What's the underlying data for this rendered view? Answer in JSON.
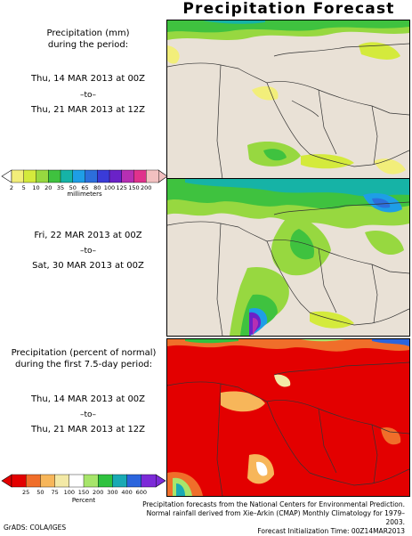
{
  "title": "Precipitation Forecast",
  "panel1": {
    "label_line1": "Precipitation (mm)",
    "label_line2": "during the period:",
    "start": "Thu, 14 MAR 2013 at 00Z",
    "to": "–to–",
    "end": "Thu, 21 MAR 2013 at 12Z"
  },
  "panel2": {
    "start": "Fri, 22 MAR 2013 at 00Z",
    "to": "–to–",
    "end": "Sat, 30 MAR 2013 at 00Z"
  },
  "panel3": {
    "label_line1": "Precipitation (percent of normal)",
    "label_line2": "during the first 7.5-day period:",
    "start": "Thu, 14 MAR 2013 at 00Z",
    "to": "–to–",
    "end": "Thu, 21 MAR 2013 at 12Z"
  },
  "colorbar_mm": {
    "ticks": [
      "2",
      "5",
      "10",
      "20",
      "35",
      "50",
      "65",
      "80",
      "100",
      "125",
      "150",
      "200"
    ],
    "unit": "millimeters",
    "colors": [
      "#f2ee7a",
      "#d4ea3c",
      "#97d840",
      "#3fc23f",
      "#16b3a6",
      "#1e9ee6",
      "#2c6fdc",
      "#3a3bd8",
      "#6a22c8",
      "#b62fb3",
      "#e0328c",
      "#f2c0c0"
    ]
  },
  "colorbar_pct": {
    "ticks": [
      "25",
      "50",
      "75",
      "100",
      "150",
      "200",
      "300",
      "400",
      "600"
    ],
    "unit": "Percent",
    "colors": [
      "#e30000",
      "#f06e2a",
      "#f7b65a",
      "#f3e9a6",
      "#ffffff",
      "#a7e56b",
      "#2fc23f",
      "#19aab4",
      "#2b65dd",
      "#7c2bd8"
    ]
  },
  "credits": {
    "line1": "Precipitation forecasts from the National Centers for Environmental Prediction.",
    "line2": "Normal rainfall derived from Xie–Arkin (CMAP) Monthly Climatology for 1979–2003.",
    "line3": "Forecast Initialization Time: 00Z14MAR2013"
  },
  "footer": "GrADS: COLA/IGES"
}
